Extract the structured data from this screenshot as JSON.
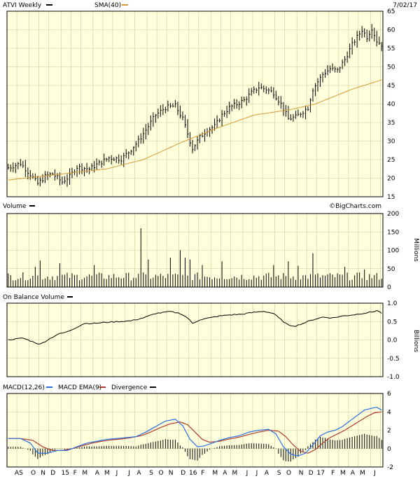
{
  "header": {
    "ticker_label": "ATVI Weekly",
    "sma_label": "SMA(40)",
    "date": "7/02/17"
  },
  "colors": {
    "plot_bg": "#ffffdc",
    "grid": "#c8c8a0",
    "price_bar": "#000000",
    "sma_line": "#d49a3a",
    "macd_line": "#2a6fe0",
    "macd_ema_line": "#b03a2e",
    "divergence": "#000000"
  },
  "chart_data": [
    {
      "type": "bar",
      "name": "price",
      "title": "ATVI Weekly",
      "y_ticks": [
        15,
        20,
        25,
        30,
        35,
        40,
        45,
        50,
        55,
        60,
        65
      ],
      "ylim": [
        15,
        65
      ],
      "grid": true,
      "start_date": "2014-08-04",
      "weeks": 153,
      "close_anchors": [
        [
          0,
          22.8
        ],
        [
          5,
          24.0
        ],
        [
          9,
          21.0
        ],
        [
          12,
          18.5
        ],
        [
          15,
          20.5
        ],
        [
          18,
          21.2
        ],
        [
          22,
          19.0
        ],
        [
          25,
          20.5
        ],
        [
          28,
          23.0
        ],
        [
          33,
          22.5
        ],
        [
          37,
          24.0
        ],
        [
          41,
          25.5
        ],
        [
          46,
          25.2
        ],
        [
          49,
          27.0
        ],
        [
          53,
          30.0
        ],
        [
          56,
          33.0
        ],
        [
          60,
          37.0
        ],
        [
          64,
          39.0
        ],
        [
          68,
          39.5
        ],
        [
          71,
          36.0
        ],
        [
          73,
          32.0
        ],
        [
          75,
          28.0
        ],
        [
          78,
          31.0
        ],
        [
          81,
          33.0
        ],
        [
          84,
          34.0
        ],
        [
          87,
          37.0
        ],
        [
          90,
          39.0
        ],
        [
          93,
          40.0
        ],
        [
          96,
          41.0
        ],
        [
          99,
          43.0
        ],
        [
          102,
          44.5
        ],
        [
          105,
          44.0
        ],
        [
          108,
          43.0
        ],
        [
          111,
          40.0
        ],
        [
          114,
          36.0
        ],
        [
          117,
          36.5
        ],
        [
          120,
          38.0
        ],
        [
          122,
          39.0
        ],
        [
          124,
          44.0
        ],
        [
          126,
          46.0
        ],
        [
          128,
          48.0
        ],
        [
          131,
          49.5
        ],
        [
          134,
          49.0
        ],
        [
          137,
          52.0
        ],
        [
          140,
          56.0
        ],
        [
          142,
          58.0
        ],
        [
          144,
          60.0
        ],
        [
          146,
          58.0
        ],
        [
          148,
          60.5
        ],
        [
          150,
          57.0
        ],
        [
          152,
          56.0
        ]
      ],
      "sma_anchors": [
        [
          0,
          19.5
        ],
        [
          20,
          21.0
        ],
        [
          40,
          22.5
        ],
        [
          55,
          25.0
        ],
        [
          70,
          29.5
        ],
        [
          85,
          33.5
        ],
        [
          100,
          37.0
        ],
        [
          115,
          38.5
        ],
        [
          125,
          40.0
        ],
        [
          140,
          44.0
        ],
        [
          152,
          46.5
        ]
      ],
      "x_ticks": [
        "A",
        "S",
        "O",
        "N",
        "D",
        "15",
        "F",
        "M",
        "A",
        "M",
        "J",
        "J",
        "A",
        "S",
        "O",
        "N",
        "D",
        "16",
        "F",
        "M",
        "A",
        "M",
        "J",
        "J",
        "A",
        "S",
        "O",
        "N",
        "D",
        "17",
        "F",
        "M",
        "A",
        "M",
        "J"
      ],
      "series": [
        {
          "name": "ATVI Weekly"
        },
        {
          "name": "SMA(40)"
        }
      ]
    },
    {
      "type": "bar",
      "name": "volume",
      "title": "Volume",
      "y_ticks": [
        0,
        50,
        100,
        150,
        200
      ],
      "ylim": [
        0,
        200
      ],
      "ylabel": "Millions",
      "watermark": "©BigCharts.com",
      "spikes": [
        [
          11,
          55
        ],
        [
          13,
          72
        ],
        [
          21,
          65
        ],
        [
          35,
          60
        ],
        [
          54,
          160
        ],
        [
          57,
          75
        ],
        [
          66,
          80
        ],
        [
          70,
          100
        ],
        [
          72,
          80
        ],
        [
          74,
          75
        ],
        [
          79,
          60
        ],
        [
          87,
          70
        ],
        [
          108,
          60
        ],
        [
          114,
          70
        ],
        [
          118,
          58
        ],
        [
          124,
          92
        ],
        [
          137,
          55
        ],
        [
          145,
          48
        ]
      ]
    },
    {
      "type": "line",
      "name": "obv",
      "title": "On Balance Volume",
      "y_ticks": [
        -1.0,
        -0.5,
        0.0,
        0.5,
        1.0
      ],
      "ylim": [
        -1.0,
        1.0
      ],
      "ylabel": "Billions",
      "anchors": [
        [
          0,
          0.0
        ],
        [
          6,
          0.05
        ],
        [
          10,
          -0.05
        ],
        [
          13,
          -0.12
        ],
        [
          16,
          0.0
        ],
        [
          20,
          0.15
        ],
        [
          24,
          0.22
        ],
        [
          28,
          0.35
        ],
        [
          31,
          0.45
        ],
        [
          35,
          0.45
        ],
        [
          40,
          0.48
        ],
        [
          45,
          0.5
        ],
        [
          50,
          0.52
        ],
        [
          55,
          0.6
        ],
        [
          60,
          0.72
        ],
        [
          66,
          0.77
        ],
        [
          70,
          0.72
        ],
        [
          73,
          0.6
        ],
        [
          75,
          0.45
        ],
        [
          78,
          0.55
        ],
        [
          82,
          0.6
        ],
        [
          86,
          0.65
        ],
        [
          90,
          0.68
        ],
        [
          95,
          0.7
        ],
        [
          100,
          0.75
        ],
        [
          104,
          0.78
        ],
        [
          108,
          0.72
        ],
        [
          111,
          0.55
        ],
        [
          114,
          0.4
        ],
        [
          117,
          0.38
        ],
        [
          120,
          0.45
        ],
        [
          124,
          0.55
        ],
        [
          128,
          0.62
        ],
        [
          132,
          0.6
        ],
        [
          136,
          0.65
        ],
        [
          140,
          0.68
        ],
        [
          144,
          0.72
        ],
        [
          148,
          0.76
        ],
        [
          150,
          0.8
        ],
        [
          152,
          0.73
        ]
      ]
    },
    {
      "type": "line",
      "name": "macd",
      "title": "MACD(12,26)",
      "y_ticks": [
        -2,
        0,
        2,
        4,
        6
      ],
      "ylim": [
        -2,
        6
      ],
      "series": [
        {
          "name": "MACD(12,26)"
        },
        {
          "name": "MACD EMA(9)"
        },
        {
          "name": "Divergence"
        }
      ],
      "macd_anchors": [
        [
          0,
          1.1
        ],
        [
          5,
          1.1
        ],
        [
          9,
          0.6
        ],
        [
          12,
          -0.5
        ],
        [
          16,
          -0.5
        ],
        [
          20,
          -0.2
        ],
        [
          24,
          -0.2
        ],
        [
          28,
          0.2
        ],
        [
          32,
          0.6
        ],
        [
          36,
          0.8
        ],
        [
          40,
          1.0
        ],
        [
          44,
          1.1
        ],
        [
          48,
          1.2
        ],
        [
          52,
          1.3
        ],
        [
          56,
          1.8
        ],
        [
          60,
          2.4
        ],
        [
          64,
          3.0
        ],
        [
          68,
          3.2
        ],
        [
          71,
          2.5
        ],
        [
          74,
          1.0
        ],
        [
          77,
          0.2
        ],
        [
          80,
          0.3
        ],
        [
          83,
          0.6
        ],
        [
          86,
          0.9
        ],
        [
          90,
          1.2
        ],
        [
          94,
          1.4
        ],
        [
          98,
          1.8
        ],
        [
          102,
          2.0
        ],
        [
          106,
          2.1
        ],
        [
          109,
          1.6
        ],
        [
          112,
          0.2
        ],
        [
          115,
          -0.6
        ],
        [
          118,
          -0.8
        ],
        [
          121,
          -0.5
        ],
        [
          124,
          0.4
        ],
        [
          127,
          1.4
        ],
        [
          130,
          1.8
        ],
        [
          133,
          2.0
        ],
        [
          136,
          2.4
        ],
        [
          139,
          3.0
        ],
        [
          142,
          3.6
        ],
        [
          145,
          4.2
        ],
        [
          148,
          4.4
        ],
        [
          150,
          4.5
        ],
        [
          152,
          4.2
        ]
      ],
      "ema_anchors": [
        [
          0,
          1.1
        ],
        [
          5,
          1.1
        ],
        [
          10,
          0.9
        ],
        [
          14,
          0.2
        ],
        [
          18,
          -0.2
        ],
        [
          22,
          -0.2
        ],
        [
          26,
          0.0
        ],
        [
          30,
          0.3
        ],
        [
          34,
          0.6
        ],
        [
          38,
          0.8
        ],
        [
          42,
          0.95
        ],
        [
          46,
          1.05
        ],
        [
          50,
          1.2
        ],
        [
          54,
          1.4
        ],
        [
          58,
          1.8
        ],
        [
          62,
          2.3
        ],
        [
          66,
          2.7
        ],
        [
          70,
          2.9
        ],
        [
          73,
          2.6
        ],
        [
          76,
          1.8
        ],
        [
          79,
          1.0
        ],
        [
          82,
          0.7
        ],
        [
          86,
          0.8
        ],
        [
          90,
          1.05
        ],
        [
          94,
          1.25
        ],
        [
          98,
          1.55
        ],
        [
          102,
          1.8
        ],
        [
          106,
          2.0
        ],
        [
          110,
          1.9
        ],
        [
          113,
          1.3
        ],
        [
          116,
          0.4
        ],
        [
          119,
          -0.3
        ],
        [
          122,
          -0.5
        ],
        [
          125,
          -0.1
        ],
        [
          128,
          0.6
        ],
        [
          131,
          1.2
        ],
        [
          134,
          1.6
        ],
        [
          137,
          2.0
        ],
        [
          140,
          2.5
        ],
        [
          143,
          3.0
        ],
        [
          146,
          3.5
        ],
        [
          149,
          3.9
        ],
        [
          152,
          4.0
        ]
      ]
    }
  ]
}
